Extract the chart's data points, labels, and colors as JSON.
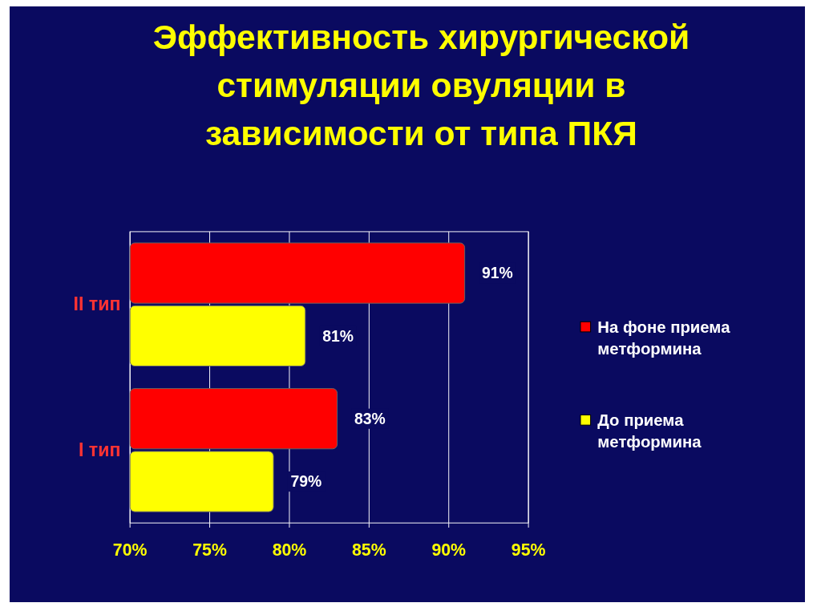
{
  "chart_data": {
    "type": "bar",
    "orientation": "horizontal",
    "title": "Эффективность хирургической стимуляции овуляции в зависимости от типа ПКЯ",
    "categories": [
      "II тип",
      "I тип"
    ],
    "series": [
      {
        "name": "На фоне приема метформина",
        "color": "#ff0000",
        "values": [
          91,
          83
        ],
        "value_labels": [
          "91%",
          "83%"
        ]
      },
      {
        "name": "До приема метформина",
        "color": "#ffff00",
        "values": [
          81,
          79
        ],
        "value_labels": [
          "81%",
          "79%"
        ]
      }
    ],
    "xlim": [
      70,
      95
    ],
    "xticks": [
      {
        "value": 70,
        "label": "70%"
      },
      {
        "value": 75,
        "label": "75%"
      },
      {
        "value": 80,
        "label": "80%"
      },
      {
        "value": 85,
        "label": "85%"
      },
      {
        "value": 90,
        "label": "90%"
      },
      {
        "value": 95,
        "label": "95%"
      }
    ],
    "grid": "x",
    "legend": "right"
  }
}
